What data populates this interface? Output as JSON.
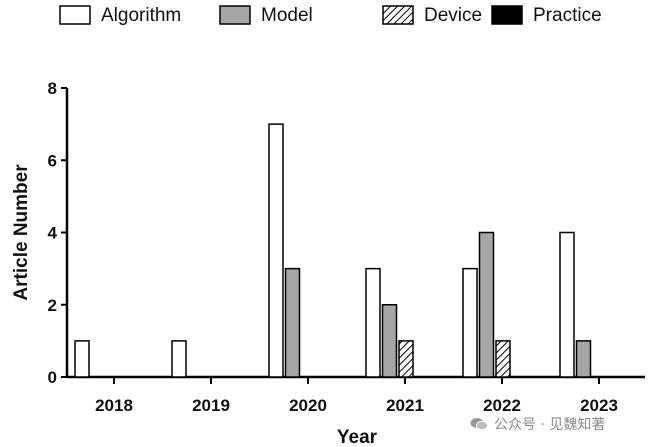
{
  "chart_data": {
    "type": "bar",
    "xlabel": "Year",
    "ylabel": "Article Number",
    "ylim": [
      0,
      8
    ],
    "yticks": [
      0,
      2,
      4,
      6,
      8
    ],
    "categories": [
      "2018",
      "2019",
      "2020",
      "2021",
      "2022",
      "2023"
    ],
    "legend_position": "top",
    "series": [
      {
        "name": "Algorithm",
        "style": "white",
        "values": [
          1,
          1,
          7,
          3,
          3,
          4
        ]
      },
      {
        "name": "Model",
        "style": "gray",
        "values": [
          0,
          0,
          3,
          2,
          4,
          1
        ]
      },
      {
        "name": "Device",
        "style": "hatched",
        "values": [
          0,
          0,
          0,
          1,
          1,
          0
        ]
      },
      {
        "name": "Practice",
        "style": "black",
        "values": [
          0,
          0,
          0,
          0,
          0,
          0
        ]
      }
    ],
    "colors": {
      "white": "#ffffff",
      "gray": "#a6a6a6",
      "black": "#000000",
      "stroke": "#000000"
    }
  },
  "watermark": {
    "text": "公众号 · 见魏知著",
    "icon": "wechat-icon"
  }
}
